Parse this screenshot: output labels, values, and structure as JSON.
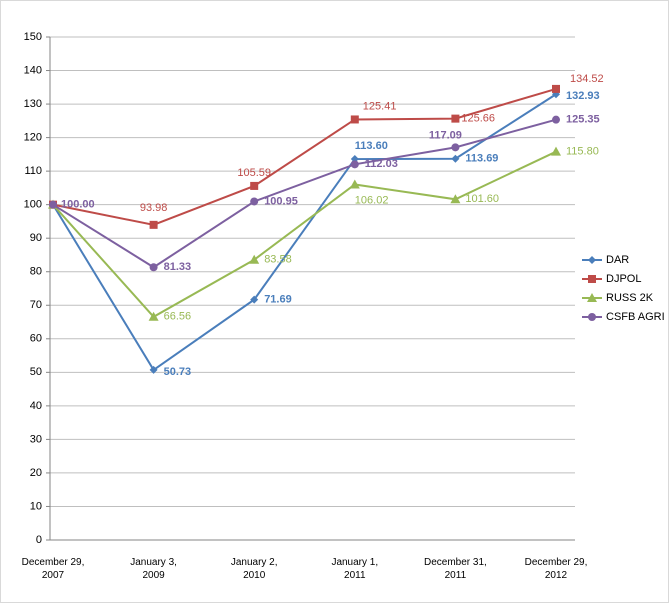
{
  "chart_data": {
    "type": "line",
    "categories": [
      "December 29,\n2007",
      "January 3,\n2009",
      "January 2,\n2010",
      "January 1,\n2011",
      "December 31,\n2011",
      "December 29,\n2012"
    ],
    "ylim": [
      0,
      150
    ],
    "yticks": [
      0,
      10,
      20,
      30,
      40,
      50,
      60,
      70,
      80,
      90,
      100,
      110,
      120,
      130,
      140,
      150
    ],
    "grid": true,
    "legend": "right",
    "series": [
      {
        "name": "DAR",
        "color": "#4a7ebb",
        "marker": "diamond",
        "values": [
          100,
          50.73,
          71.69,
          113.6,
          113.69,
          132.93
        ],
        "value_labels": [
          null,
          "50.73",
          "71.69",
          "113.60",
          "113.69",
          "132.93"
        ]
      },
      {
        "name": "DJPOL",
        "color": "#be4b48",
        "marker": "square",
        "values": [
          100,
          93.98,
          105.59,
          125.41,
          125.66,
          134.52
        ],
        "value_labels": [
          null,
          "93.98",
          "105.59",
          "125.41",
          "125.66",
          "134.52"
        ]
      },
      {
        "name": "RUSS 2K",
        "color": "#98b954",
        "marker": "triangle",
        "values": [
          100,
          66.56,
          83.58,
          106.02,
          101.6,
          115.8
        ],
        "value_labels": [
          null,
          "66.56",
          "83.58",
          "106.02",
          "101.60",
          "115.80"
        ]
      },
      {
        "name": "CSFB AGRI",
        "color": "#7d60a0",
        "marker": "circle",
        "values": [
          100,
          81.33,
          100.95,
          112.03,
          117.09,
          125.35
        ],
        "value_labels": [
          "100.00",
          "81.33",
          "100.95",
          "112.03",
          "117.09",
          "125.35"
        ]
      }
    ]
  }
}
